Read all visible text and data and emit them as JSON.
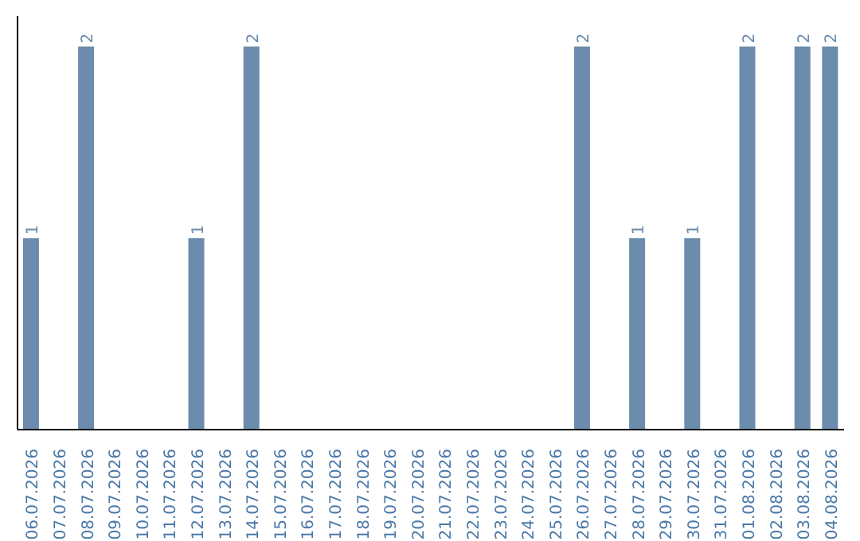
{
  "chart_data": {
    "type": "bar",
    "categories": [
      "06.07.2026",
      "07.07.2026",
      "08.07.2026",
      "09.07.2026",
      "10.07.2026",
      "11.07.2026",
      "12.07.2026",
      "13.07.2026",
      "14.07.2026",
      "15.07.2026",
      "16.07.2026",
      "17.07.2026",
      "18.07.2026",
      "19.07.2026",
      "20.07.2026",
      "21.07.2026",
      "22.07.2026",
      "23.07.2026",
      "24.07.2026",
      "25.07.2026",
      "26.07.2026",
      "27.07.2026",
      "28.07.2026",
      "29.07.2026",
      "30.07.2026",
      "31.07.2026",
      "01.08.2026",
      "02.08.2026",
      "03.08.2026",
      "04.08.2026"
    ],
    "values": [
      1,
      0,
      2,
      0,
      0,
      0,
      1,
      0,
      2,
      0,
      0,
      0,
      0,
      0,
      0,
      0,
      0,
      0,
      0,
      0,
      2,
      0,
      1,
      0,
      1,
      0,
      2,
      0,
      2,
      2
    ],
    "value_labels": [
      "1",
      null,
      "2",
      null,
      null,
      null,
      "1",
      null,
      "2",
      null,
      null,
      null,
      null,
      null,
      null,
      null,
      null,
      null,
      null,
      null,
      "2",
      null,
      "1",
      null,
      "1",
      null,
      "2",
      null,
      "2",
      "2"
    ],
    "color": "#6b8cac",
    "grid": false,
    "legend": false
  }
}
